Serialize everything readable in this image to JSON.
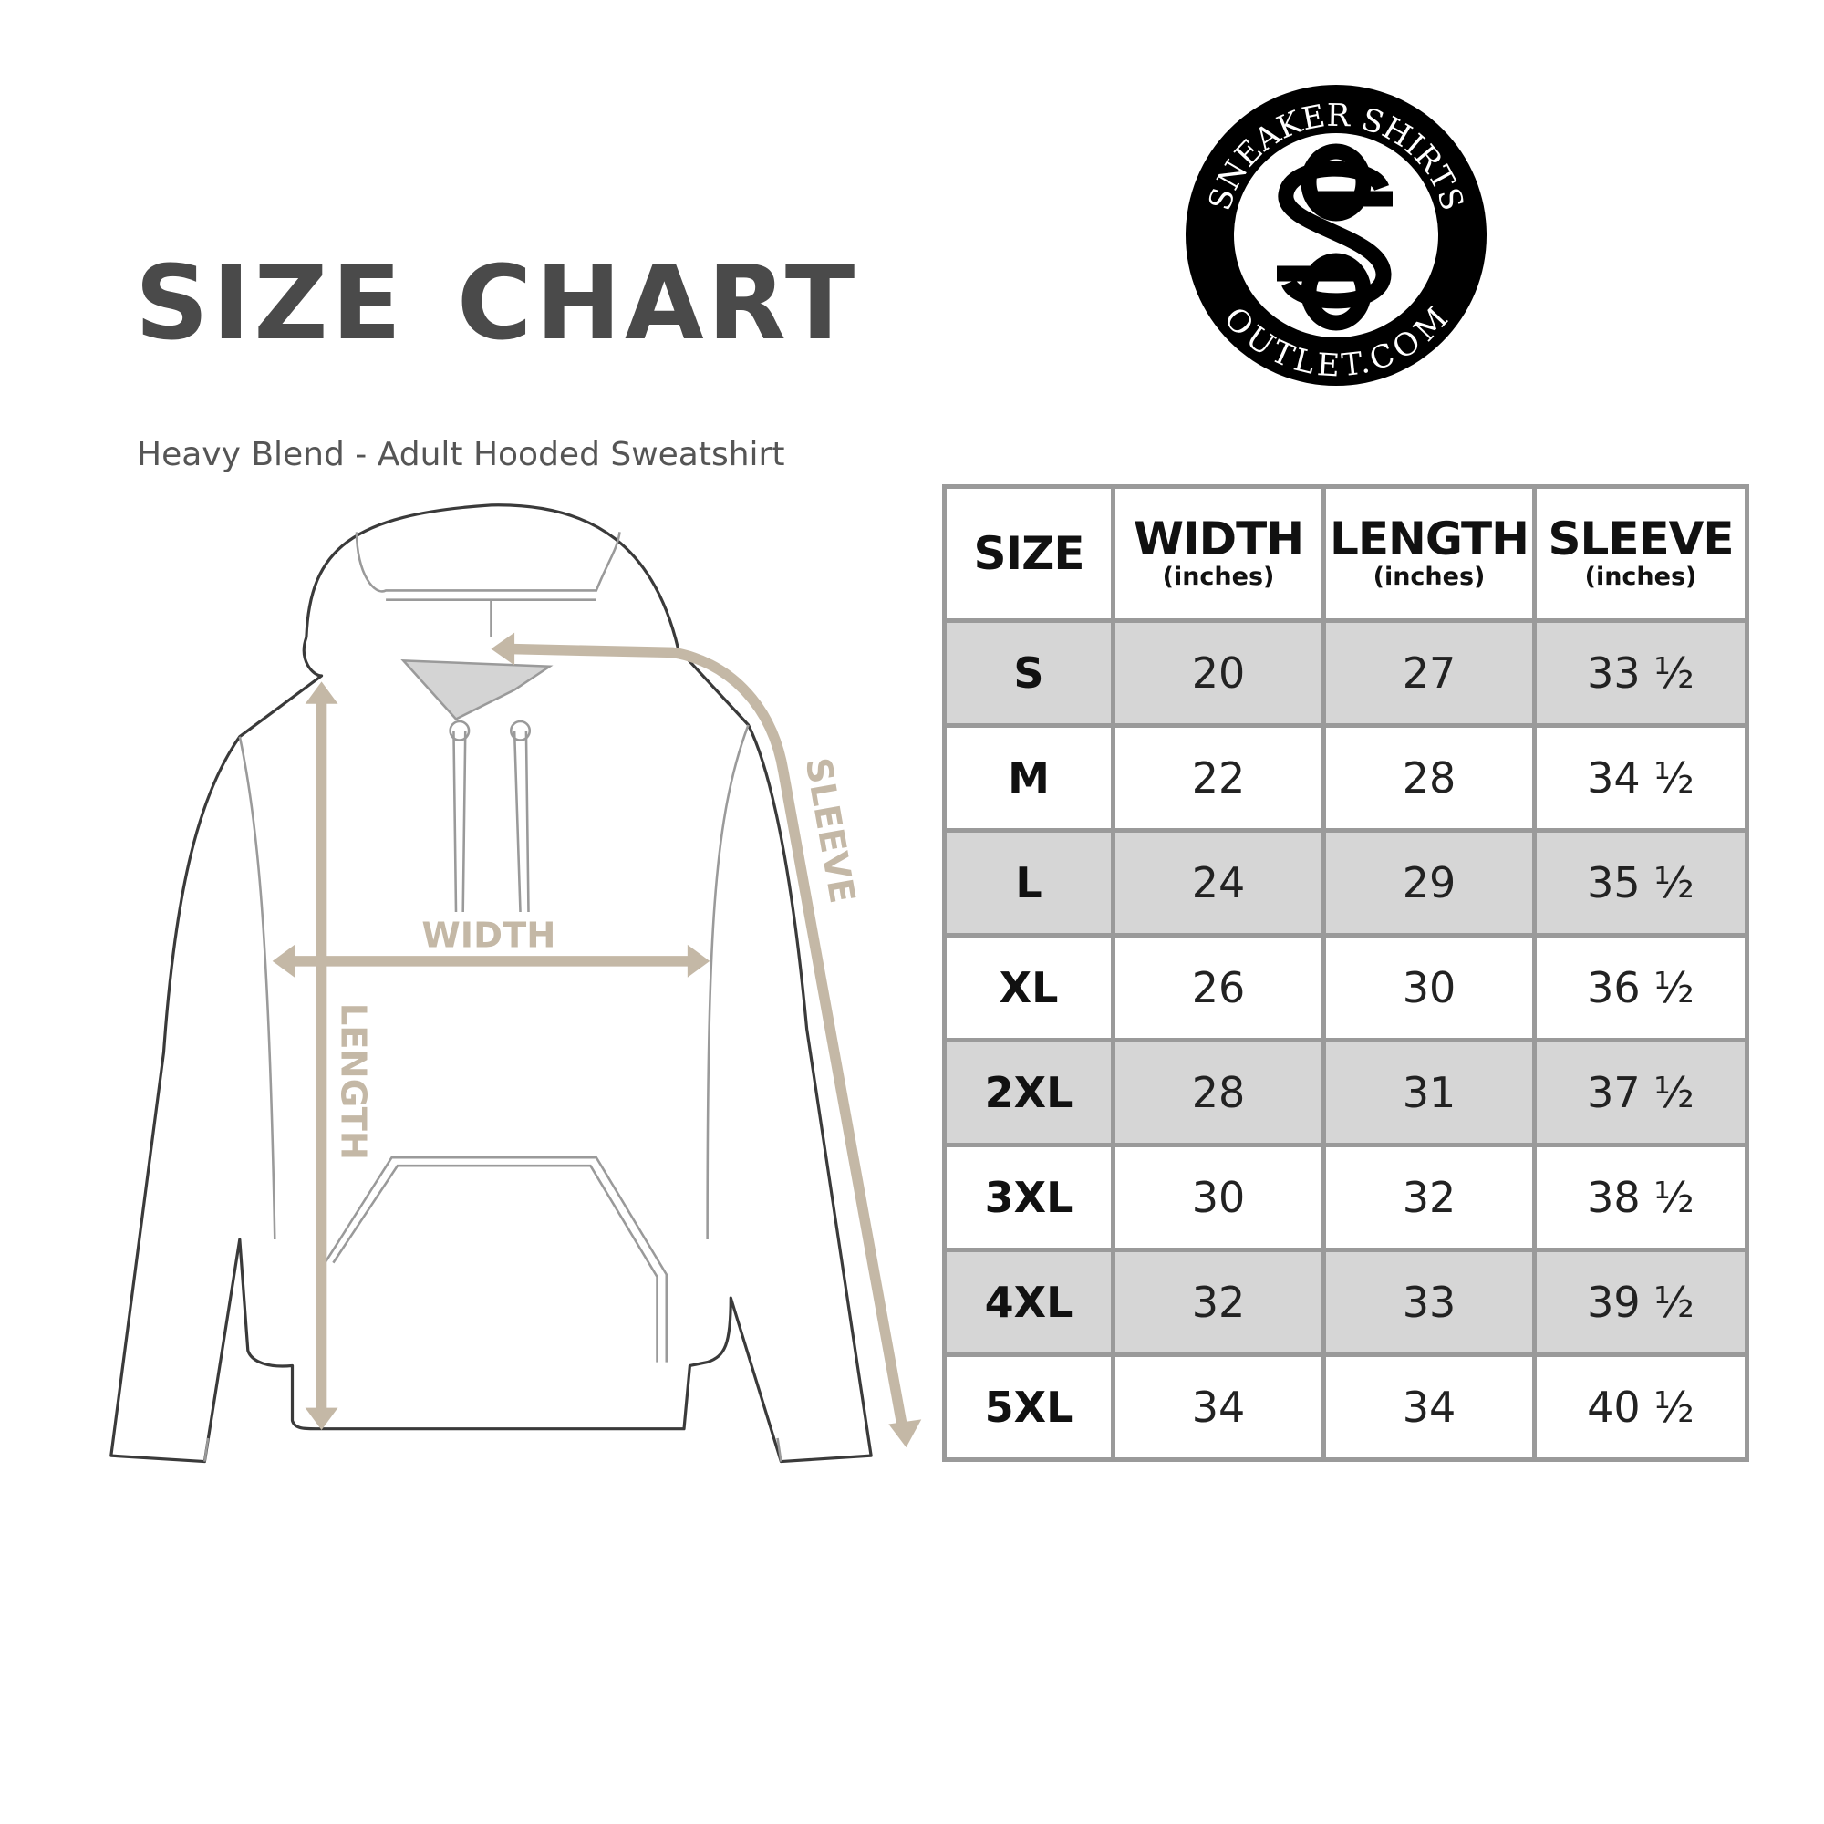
{
  "title": "SIZE CHART",
  "subtitle": "Heavy Blend - Adult Hooded Sweatshirt",
  "logo": {
    "top_text": "SNEAKER SHIRTS",
    "bottom_text": "OUTLET.COM",
    "monogram": "SS"
  },
  "diagram": {
    "width_label": "WIDTH",
    "length_label": "LENGTH",
    "sleeve_label": "SLEEVE",
    "arrow_color": "#c4b8a6"
  },
  "table": {
    "headers": [
      {
        "main": "SIZE",
        "sub": ""
      },
      {
        "main": "WIDTH",
        "sub": "(inches)"
      },
      {
        "main": "LENGTH",
        "sub": "(inches)"
      },
      {
        "main": "SLEEVE",
        "sub": "(inches)"
      }
    ],
    "rows": [
      [
        "S",
        "20",
        "27",
        "33 ½"
      ],
      [
        "M",
        "22",
        "28",
        "34 ½"
      ],
      [
        "L",
        "24",
        "29",
        "35 ½"
      ],
      [
        "XL",
        "26",
        "30",
        "36 ½"
      ],
      [
        "2XL",
        "28",
        "31",
        "37 ½"
      ],
      [
        "3XL",
        "30",
        "32",
        "38 ½"
      ],
      [
        "4XL",
        "32",
        "33",
        "39 ½"
      ],
      [
        "5XL",
        "34",
        "34",
        "40 ½"
      ]
    ],
    "stripe_color": "#d6d6d6",
    "border_color": "#9a9a9a"
  }
}
